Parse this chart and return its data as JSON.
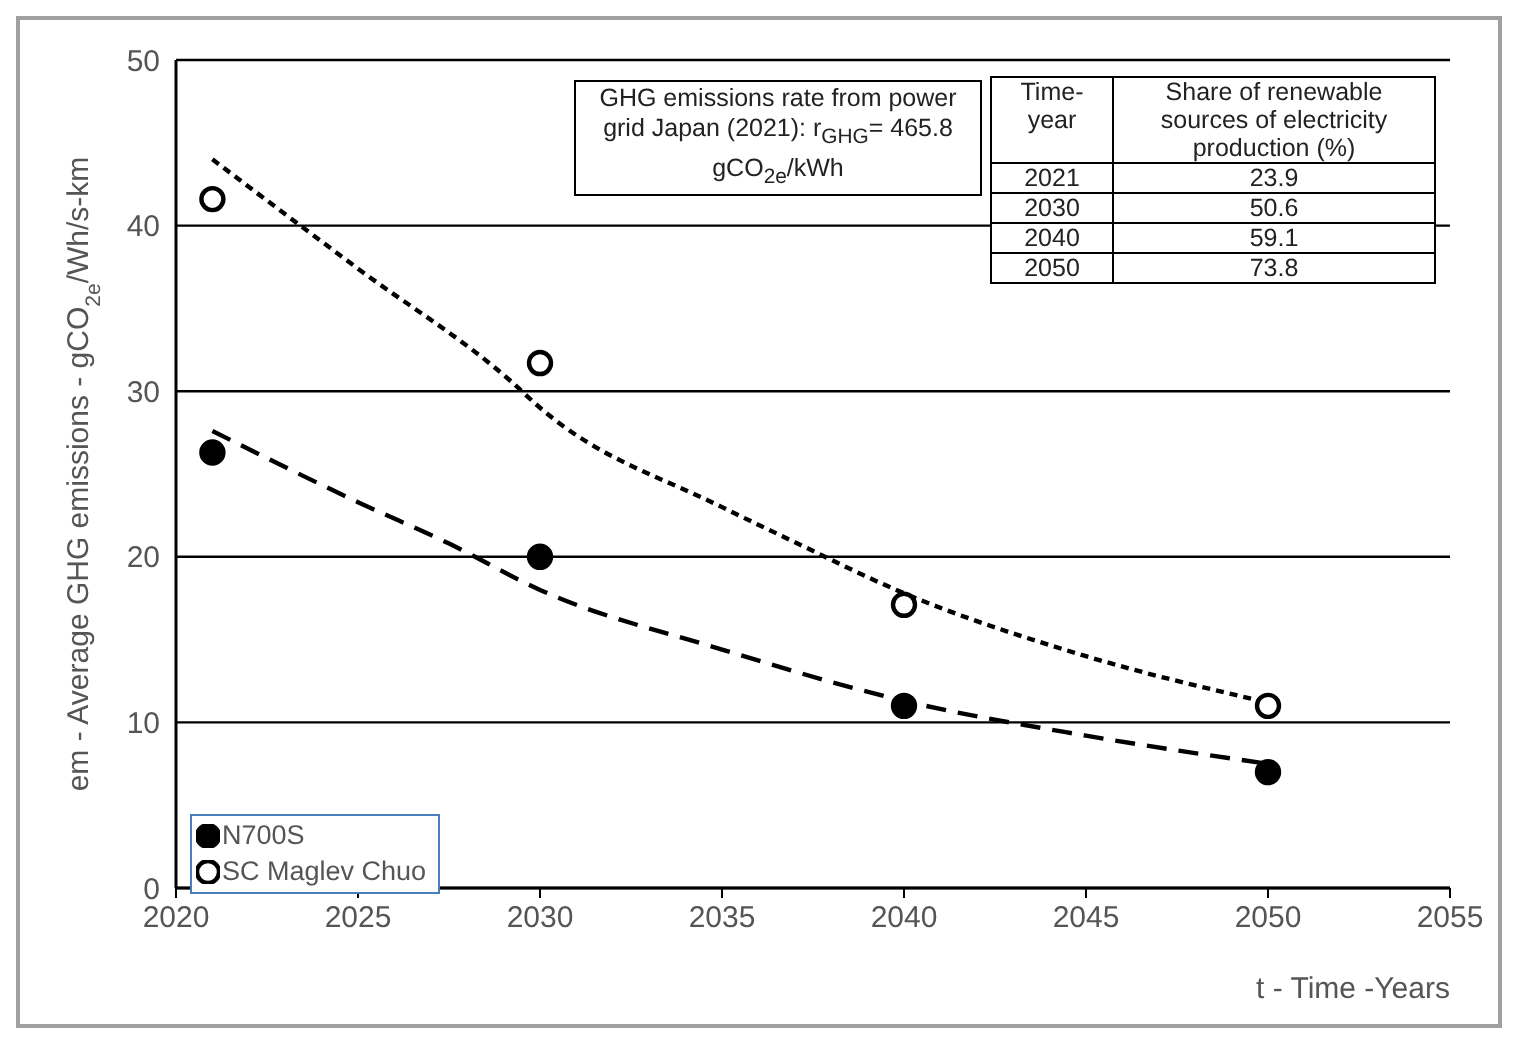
{
  "chart_data": {
    "type": "scatter",
    "xlabel": "t - Time -Years",
    "ylabel": "em - Average GHG emissions - gCO$_{2e}$/Wh/s-km",
    "xlim": [
      2020,
      2055
    ],
    "xticks": [
      2020,
      2025,
      2030,
      2035,
      2040,
      2045,
      2050,
      2055
    ],
    "ylim": [
      0,
      50
    ],
    "yticks": [
      0,
      10,
      20,
      30,
      40,
      50
    ],
    "grid": "y",
    "legend": "bottom left",
    "series": [
      {
        "name": "N700S",
        "marker": "circle",
        "color": "#000000",
        "x": [
          2021,
          2030,
          2040,
          2050
        ],
        "values": [
          26.3,
          20.0,
          11.0,
          7.0
        ]
      },
      {
        "name": "SC Maglev Chuo",
        "marker": "circle",
        "color": "#ffffff",
        "x": [
          2021,
          2030,
          2040,
          2050
        ],
        "values": [
          41.6,
          31.7,
          17.1,
          11.0
        ]
      },
      {
        "type": "line",
        "line_style": "dashed",
        "color": "#000000",
        "x": [
          2021,
          2025,
          2027.5,
          2030,
          2035,
          2040,
          2045,
          2050
        ],
        "values": [
          27.6,
          23.3,
          20.8,
          18.0,
          14.4,
          11.3,
          9.2,
          7.5
        ]
      },
      {
        "type": "line",
        "line_style": "dotted",
        "color": "#000000",
        "x": [
          2021,
          2025,
          2029.2,
          2030,
          2035,
          2036.7,
          2040,
          2045,
          2050
        ],
        "values": [
          44.0,
          37.4,
          30.6,
          29.0,
          23.0,
          21.2,
          17.8,
          14.0,
          11.2
        ]
      }
    ],
    "annotations": [
      "GHG emissions rate from power grid Japan (2021): r$_{GHG}$= 465.8  gCO$_{2e}$/kWh",
      "Time-\nyear",
      "Share of renewable sources of electricity production (%)",
      "2021",
      "23.9",
      "2030",
      "50.6",
      "2040",
      "59.1",
      "2050",
      "73.8"
    ]
  }
}
